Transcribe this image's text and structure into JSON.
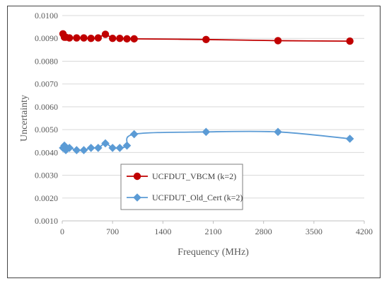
{
  "chart_data": {
    "type": "line",
    "title": "",
    "xlabel": "Frequency (MHz)",
    "ylabel": "Uncertainty",
    "xlim": [
      0,
      4200
    ],
    "ylim": [
      0.001,
      0.01
    ],
    "x_ticks": [
      "0",
      "700",
      "1400",
      "2100",
      "2800",
      "3500",
      "4200"
    ],
    "y_ticks": [
      "0.0010",
      "0.0020",
      "0.0030",
      "0.0040",
      "0.0050",
      "0.0060",
      "0.0070",
      "0.0080",
      "0.0090",
      "0.0100"
    ],
    "grid": "horizontal",
    "legend_position": "inside-lower-left",
    "series": [
      {
        "name": "UCFDUT_VBCM (k=2)",
        "color": "#c00000",
        "marker": "circle",
        "x": [
          10,
          30,
          50,
          100,
          200,
          300,
          400,
          500,
          600,
          700,
          800,
          900,
          1000,
          2000,
          3000,
          4000
        ],
        "y": [
          0.0092,
          0.00905,
          0.00905,
          0.00902,
          0.00902,
          0.00902,
          0.009,
          0.00902,
          0.00918,
          0.009,
          0.009,
          0.00898,
          0.00898,
          0.00895,
          0.0089,
          0.00888
        ]
      },
      {
        "name": "UCFDUT_Old_Cert (k=2)",
        "color": "#5b9bd5",
        "marker": "diamond",
        "x": [
          10,
          30,
          50,
          100,
          200,
          300,
          400,
          500,
          600,
          700,
          800,
          900,
          1000,
          2000,
          3000,
          4000
        ],
        "y": [
          0.0042,
          0.0043,
          0.0041,
          0.0042,
          0.0041,
          0.0041,
          0.0042,
          0.0042,
          0.0044,
          0.0042,
          0.0042,
          0.0043,
          0.0048,
          0.0049,
          0.0049,
          0.0046
        ]
      }
    ]
  }
}
